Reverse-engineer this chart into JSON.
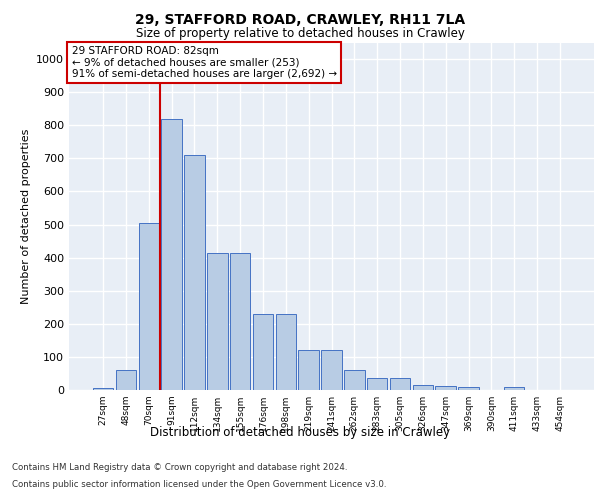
{
  "title1": "29, STAFFORD ROAD, CRAWLEY, RH11 7LA",
  "title2": "Size of property relative to detached houses in Crawley",
  "xlabel": "Distribution of detached houses by size in Crawley",
  "ylabel": "Number of detached properties",
  "footer1": "Contains HM Land Registry data © Crown copyright and database right 2024.",
  "footer2": "Contains public sector information licensed under the Open Government Licence v3.0.",
  "bar_labels": [
    "27sqm",
    "48sqm",
    "70sqm",
    "91sqm",
    "112sqm",
    "134sqm",
    "155sqm",
    "176sqm",
    "198sqm",
    "219sqm",
    "241sqm",
    "262sqm",
    "283sqm",
    "305sqm",
    "326sqm",
    "347sqm",
    "369sqm",
    "390sqm",
    "411sqm",
    "433sqm",
    "454sqm"
  ],
  "bar_values": [
    7,
    60,
    505,
    820,
    710,
    415,
    415,
    230,
    230,
    120,
    120,
    60,
    35,
    35,
    15,
    13,
    8,
    0,
    8,
    0,
    0
  ],
  "bar_color": "#b8cce4",
  "bar_edge_color": "#4472c4",
  "property_line_color": "#cc0000",
  "annotation_text": "29 STAFFORD ROAD: 82sqm\n← 9% of detached houses are smaller (253)\n91% of semi-detached houses are larger (2,692) →",
  "annotation_box_color": "#cc0000",
  "ylim": [
    0,
    1050
  ],
  "yticks": [
    0,
    100,
    200,
    300,
    400,
    500,
    600,
    700,
    800,
    900,
    1000
  ],
  "bg_color": "#e8eef6",
  "fig_bg_color": "#ffffff",
  "grid_color": "#ffffff"
}
